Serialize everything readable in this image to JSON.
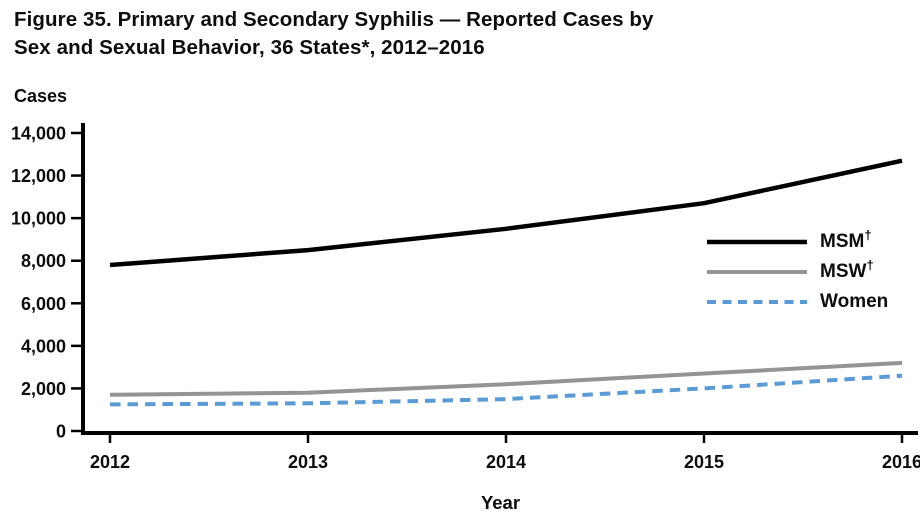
{
  "title": {
    "line1": "Figure 35. Primary and Secondary Syphilis — Reported Cases by",
    "line2": "Sex and Sexual Behavior, 36 States*, 2012–2016"
  },
  "chart_data": {
    "type": "line",
    "x": [
      2012,
      2013,
      2014,
      2015,
      2016
    ],
    "xlabel": "Year",
    "ylabel": "Cases",
    "ylim": [
      0,
      14000
    ],
    "ytick_step": 2000,
    "grid": false,
    "legend_position": "inside-right",
    "series": [
      {
        "name": "MSM",
        "sup": "†",
        "values": [
          7800,
          8500,
          9500,
          10700,
          12700
        ],
        "color": "#000000",
        "style": "solid",
        "width": 4.5
      },
      {
        "name": "MSW",
        "sup": "†",
        "values": [
          1700,
          1800,
          2200,
          2700,
          3200
        ],
        "color": "#949494",
        "style": "solid",
        "width": 4
      },
      {
        "name": "Women",
        "sup": "",
        "values": [
          1250,
          1300,
          1500,
          2000,
          2600
        ],
        "color": "#5B9BD5",
        "style": "dashed",
        "width": 4
      }
    ],
    "axis_color": "#000000"
  }
}
